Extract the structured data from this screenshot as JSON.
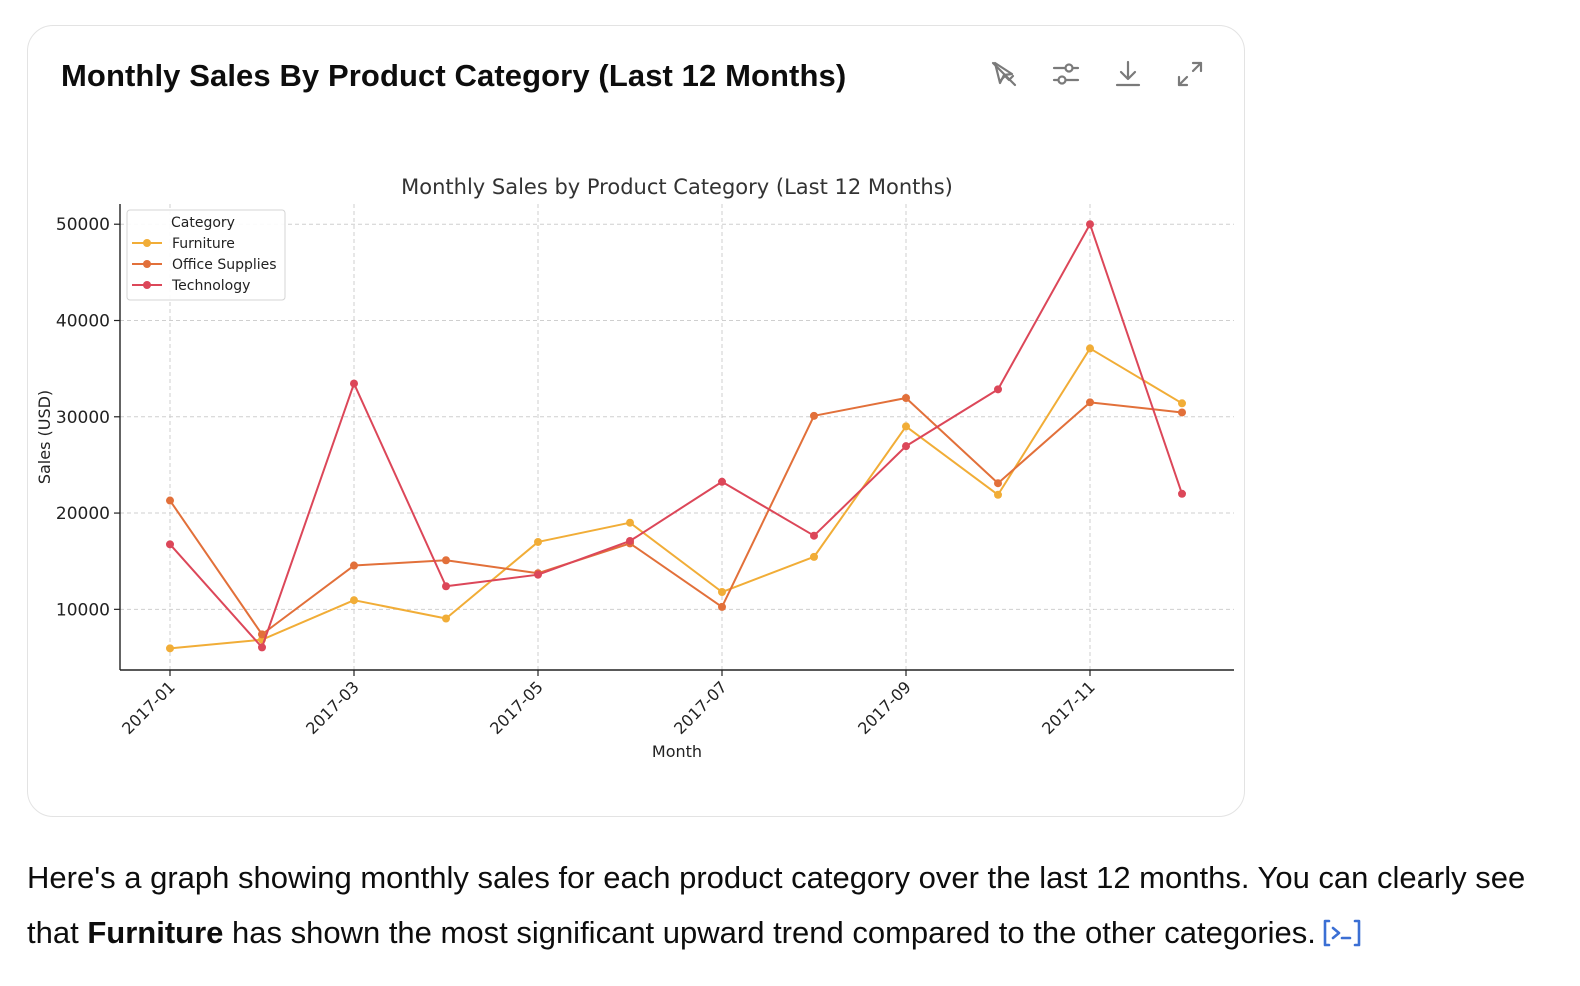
{
  "card": {
    "title": "Monthly Sales By Product Category (Last 12 Months)",
    "tools": [
      {
        "name": "switch-interactive-icon"
      },
      {
        "name": "customize-icon"
      },
      {
        "name": "download-icon"
      },
      {
        "name": "expand-icon"
      }
    ]
  },
  "chart_data": {
    "type": "line",
    "title": "Monthly Sales by Product Category (Last 12 Months)",
    "xlabel": "Month",
    "ylabel": "Sales (USD)",
    "x": [
      "2017-01",
      "2017-02",
      "2017-03",
      "2017-04",
      "2017-05",
      "2017-06",
      "2017-07",
      "2017-08",
      "2017-09",
      "2017-10",
      "2017-11",
      "2017-12"
    ],
    "x_tick_labels": [
      "2017-01",
      "2017-03",
      "2017-05",
      "2017-07",
      "2017-09",
      "2017-11"
    ],
    "y_ticks": [
      10000,
      20000,
      30000,
      40000,
      50000
    ],
    "ylim": [
      3700,
      52100
    ],
    "grid": true,
    "legend": {
      "title": "Category",
      "placement": "top-left"
    },
    "series": [
      {
        "name": "Furniture",
        "color": "#f1ad37",
        "values": [
          5950,
          6850,
          10950,
          9050,
          17000,
          19000,
          11800,
          15450,
          29000,
          21900,
          37100,
          31400
        ]
      },
      {
        "name": "Office Supplies",
        "color": "#e2703a",
        "values": [
          21300,
          7400,
          14550,
          15100,
          13750,
          16850,
          10250,
          30100,
          31950,
          23100,
          31500,
          30450
        ]
      },
      {
        "name": "Technology",
        "color": "#dc4759",
        "values": [
          16750,
          6050,
          33450,
          12400,
          13600,
          17100,
          23250,
          17650,
          26950,
          32850,
          50000,
          22000
        ]
      }
    ]
  },
  "caption": {
    "before": "Here's a graph showing monthly sales for each product category over the last 12 months. You can clearly see that ",
    "bold": "Furniture",
    "after": " has shown the most significant upward trend compared to the other categories."
  },
  "icons": {
    "code": "code-icon"
  }
}
